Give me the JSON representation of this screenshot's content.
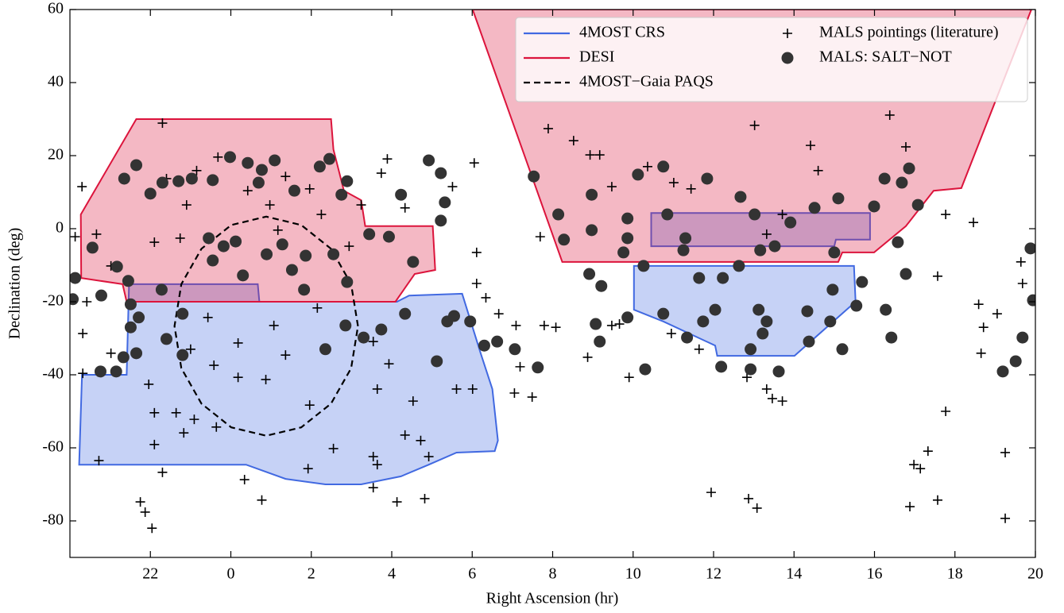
{
  "chart_data": {
    "type": "scatter",
    "xlabel": "Right Ascension  (hr)",
    "ylabel": "Declination  (deg)",
    "xlim": [
      -4,
      20
    ],
    "ylim": [
      -90,
      60
    ],
    "xticks": [
      {
        "value": -2,
        "label": "22"
      },
      0,
      2,
      4,
      6,
      8,
      10,
      12,
      14,
      16,
      18,
      20
    ],
    "yticks": [
      -80,
      -60,
      -40,
      -20,
      0,
      20,
      40,
      60
    ],
    "legend": "upper right",
    "series": [
      {
        "name": "4MOST CRS",
        "color": "#4169e1",
        "fill_opacity": 0.3,
        "regions": [
          {
            "x": [
              -3.77,
              -3.7,
              -2.59,
              -2.53,
              0.67,
              0.71,
              4.13,
              4.43,
              5.75,
              6.21,
              6.5,
              6.64,
              6.56,
              5.61,
              4.92,
              4.23,
              3.24,
              2.35,
              1.36,
              0.38
            ],
            "values": [
              -64.6,
              -40,
              -40,
              -15.2,
              -15.2,
              -20,
              -20,
              -18.3,
              -17.8,
              -34.1,
              -43.9,
              -58,
              -60.9,
              -61.3,
              -64.6,
              -67.8,
              -70,
              -70,
              -68.5,
              -64.6
            ]
          },
          {
            "x": [
              10.45,
              15.89,
              15.89,
              15.04,
              15.0,
              10.45
            ],
            "values": [
              4.3,
              4.3,
              -3,
              -3,
              -4.8,
              -4.8
            ]
          },
          {
            "x": [
              10.02,
              15.49,
              15.53,
              14.01,
              12.09,
              12.04,
              10.75,
              10.02
            ],
            "values": [
              -10.2,
              -10.2,
              -20,
              -34.8,
              -34.8,
              -32,
              -25.4,
              -22.2
            ]
          }
        ]
      },
      {
        "name": "DESI",
        "color": "#dc143c",
        "fill_opacity": 0.3,
        "regions": [
          {
            "x": [
              -3.73,
              -2.35,
              2.49,
              2.55,
              2.81,
              3.24,
              3.34,
              5.02,
              5.08,
              4.57,
              4.09,
              -2.59,
              -2.69,
              -3.72
            ],
            "values": [
              3.9,
              30,
              30,
              21.7,
              10.4,
              7.8,
              0.7,
              0.7,
              -11.3,
              -12.4,
              -20,
              -20,
              -15.2,
              -13.5
            ]
          },
          {
            "x": [
              6.01,
              8.24,
              15.1,
              15.2,
              15.99,
              16.78,
              17.47,
              18.16,
              19.9
            ],
            "values": [
              60,
              -9.1,
              -9.1,
              -6.5,
              -6.5,
              0.7,
              10.4,
              11.1,
              60
            ]
          }
        ]
      },
      {
        "name": "4MOST−Gaia PAQS",
        "color": "#000000",
        "dash": true,
        "x": [
          3.16,
          2.99,
          2.49,
          1.75,
          0.88,
          0.01,
          -0.73,
          -1.23,
          -1.4,
          -1.23,
          -0.73,
          0.01,
          0.88,
          1.75,
          2.49,
          2.99
        ],
        "values": [
          -26.7,
          -15.2,
          -5.5,
          1.0,
          3.3,
          1.0,
          -5.5,
          -15.2,
          -26.7,
          -38.2,
          -47.9,
          -54.4,
          -56.7,
          -54.4,
          -47.9,
          -38.2
        ]
      },
      {
        "name": "MALS pointings (literature)",
        "color": "#000000",
        "marker": "+",
        "x": [
          -3.7,
          -3.87,
          -3.68,
          -3.68,
          -3.28,
          -2.25,
          -2.13,
          -1.96,
          -1.7,
          -1.7,
          -1.6,
          -1.1,
          -0.85,
          -0.32,
          0.42,
          0.97,
          1.36,
          1.96,
          2.25,
          3.24,
          3.89,
          3.74,
          4.33,
          5.51,
          6.05,
          6.11,
          6.11,
          6.34,
          6.66,
          7.09,
          7.19,
          7.05,
          7.49,
          7.69,
          7.79,
          8.08,
          7.89,
          8.52,
          8.93,
          9.17,
          9.47,
          9.66,
          9.9,
          10.36,
          11.01,
          11.44,
          13.02,
          13.32,
          13.71,
          14.41,
          14.6,
          16.38,
          16.78,
          17.77,
          18.46,
          17.57,
          18.59,
          18.71,
          18.65,
          19.05,
          17.77,
          17.33,
          19.25,
          16.98,
          17.14,
          16.88,
          17.57,
          19.25,
          19.64,
          19.68,
          13.32,
          13.46,
          13.71,
          11.94,
          12.87,
          13.08,
          11.64,
          10.95,
          12.83,
          9.47,
          8.87,
          3.54,
          3.64,
          4.13,
          3.54,
          4.82,
          4.33,
          4.72,
          4.92,
          0.34,
          0.77,
          1.92,
          -0.57,
          -0.42,
          0.18,
          0.87,
          -1.0,
          -1.36,
          -1.9,
          -1.9,
          -2.04,
          -1.17,
          -0.91,
          -0.36,
          1.96,
          2.55,
          3.54,
          3.93,
          3.64,
          4.53,
          6.01,
          5.61,
          1.36,
          2.15,
          1.07,
          0.18,
          -2.98,
          -2.98,
          -3.34,
          -3.58,
          -1.9,
          -1.26,
          1.17,
          2.94
        ],
        "values": [
          11.5,
          -2.2,
          -28.7,
          -39.6,
          -63.5,
          -74.8,
          -77.6,
          -82,
          -66.7,
          28.9,
          13.7,
          6.5,
          15.9,
          19.6,
          10.4,
          6.5,
          14.3,
          10.9,
          3.9,
          6.5,
          19.1,
          15.2,
          5.7,
          11.5,
          18.0,
          -6.5,
          -15.0,
          -18.9,
          -23.3,
          -26.5,
          -37.8,
          -45.0,
          -46.1,
          -2.2,
          -26.5,
          -27.0,
          27.4,
          24.1,
          20.2,
          20.2,
          11.5,
          -26.1,
          -40.7,
          17.0,
          12.6,
          10.9,
          28.3,
          -1.5,
          3.9,
          22.8,
          15.9,
          31.1,
          22.4,
          3.9,
          1.7,
          -13.0,
          -20.7,
          -27.0,
          -34.1,
          -23.3,
          -50.0,
          -60.9,
          -61.3,
          -64.6,
          -65.7,
          -76.1,
          -74.3,
          -79.3,
          -9.1,
          -15.0,
          -43.9,
          -46.5,
          -47.2,
          -72.2,
          -73.9,
          -76.5,
          -33.0,
          -28.7,
          -40.7,
          -26.5,
          -35.2,
          -62.4,
          -64.6,
          -74.8,
          -70.9,
          -73.9,
          -56.5,
          -58.0,
          -62.4,
          -68.7,
          -74.3,
          -65.7,
          -24.3,
          -37.4,
          -40.7,
          -41.3,
          -33.0,
          -50.4,
          -59.1,
          -50.4,
          -42.6,
          -55.9,
          -52.2,
          -54.3,
          -48.3,
          -60.2,
          -30.9,
          -37.0,
          -43.9,
          -47.2,
          -43.9,
          -43.9,
          -34.6,
          -21.7,
          -26.5,
          -31.3,
          -34.1,
          -10.2,
          -1.5,
          -20.0,
          -3.7,
          -2.6,
          -0.4,
          -4.8
        ]
      },
      {
        "name": "MALS: SALT−NOT",
        "color": "#333333",
        "marker": "o",
        "x": [
          -2.65,
          -2.35,
          -2.0,
          -1.7,
          -1.3,
          -0.97,
          -0.45,
          -0.02,
          0.42,
          0.77,
          1.09,
          0.69,
          1.58,
          2.21,
          2.45,
          2.75,
          2.89,
          3.44,
          3.93,
          4.53,
          4.23,
          4.92,
          5.22,
          5.32,
          5.22,
          -3.44,
          -2.83,
          -2.55,
          -3.22,
          -2.49,
          -2.49,
          -2.29,
          -2.67,
          -2.85,
          -3.24,
          -2.35,
          -1.72,
          -1.6,
          -1.2,
          -1.2,
          -0.55,
          -0.45,
          -0.18,
          0.12,
          0.3,
          0.89,
          1.28,
          1.52,
          1.86,
          1.82,
          2.55,
          2.89,
          3.3,
          2.85,
          2.35,
          3.74,
          4.33,
          5.12,
          5.38,
          5.55,
          5.95,
          6.3,
          6.62,
          7.06,
          7.63,
          7.53,
          8.14,
          8.28,
          8.97,
          8.97,
          8.91,
          9.21,
          9.17,
          9.07,
          9.76,
          9.86,
          9.86,
          10.12,
          10.75,
          10.85,
          11.3,
          11.25,
          11.84,
          12.67,
          13.02,
          13.16,
          13.52,
          13.91,
          14.51,
          15.1,
          15.99,
          16.25,
          16.68,
          16.86,
          17.08,
          16.58,
          16.78,
          15.69,
          15.0,
          14.96,
          16.28,
          15.55,
          14.9,
          14.33,
          13.12,
          13.32,
          13.22,
          12.92,
          12.92,
          11.74,
          12.04,
          12.23,
          12.63,
          11.64,
          10.75,
          10.26,
          9.86,
          10.3,
          11.34,
          12.19,
          13.62,
          14.37,
          15.2,
          16.42,
          19.19,
          19.51,
          19.68,
          19.94,
          19.88,
          -3.87,
          -3.93
        ],
        "values": [
          13.7,
          17.4,
          9.6,
          12.6,
          13.0,
          13.7,
          13.3,
          19.6,
          18.0,
          16.1,
          18.7,
          12.6,
          10.4,
          17.0,
          19.1,
          9.3,
          13.0,
          -1.5,
          -2.2,
          -9.1,
          9.3,
          18.7,
          15.2,
          7.2,
          2.2,
          -5.2,
          -10.4,
          -14.3,
          -18.3,
          -20.7,
          -27.0,
          -24.3,
          -35.2,
          -39.1,
          -39.1,
          -34.1,
          -16.7,
          -30.2,
          -23.3,
          -34.6,
          -2.6,
          -8.7,
          -4.8,
          -3.5,
          -12.8,
          -7.0,
          -4.3,
          -11.3,
          -7.4,
          -16.7,
          -7.0,
          -14.6,
          -29.8,
          -26.5,
          -33.0,
          -27.6,
          -23.3,
          -36.3,
          -25.4,
          -23.9,
          -25.4,
          -32.0,
          -30.9,
          -33.0,
          -38.0,
          14.3,
          3.9,
          -3.0,
          9.3,
          -0.4,
          -12.4,
          -15.7,
          -30.9,
          -26.1,
          -6.5,
          -2.6,
          2.8,
          14.8,
          17.0,
          3.9,
          -2.6,
          -5.9,
          13.7,
          8.7,
          3.9,
          -5.9,
          -4.8,
          1.7,
          5.7,
          8.3,
          6.1,
          13.7,
          12.6,
          16.5,
          6.5,
          -3.7,
          -12.4,
          -14.6,
          -6.5,
          -16.7,
          -22.2,
          -21.1,
          -25.4,
          -22.6,
          -22.2,
          -25.4,
          -28.7,
          -33.0,
          -38.5,
          -25.4,
          -22.2,
          -13.5,
          -10.2,
          -13.5,
          -23.3,
          -10.2,
          -24.3,
          -38.5,
          -29.8,
          -37.8,
          -39.1,
          -30.9,
          -33.0,
          -29.8,
          -39.1,
          -36.3,
          -29.8,
          -19.6,
          -5.4,
          -13.5,
          -19.3
        ]
      }
    ]
  }
}
